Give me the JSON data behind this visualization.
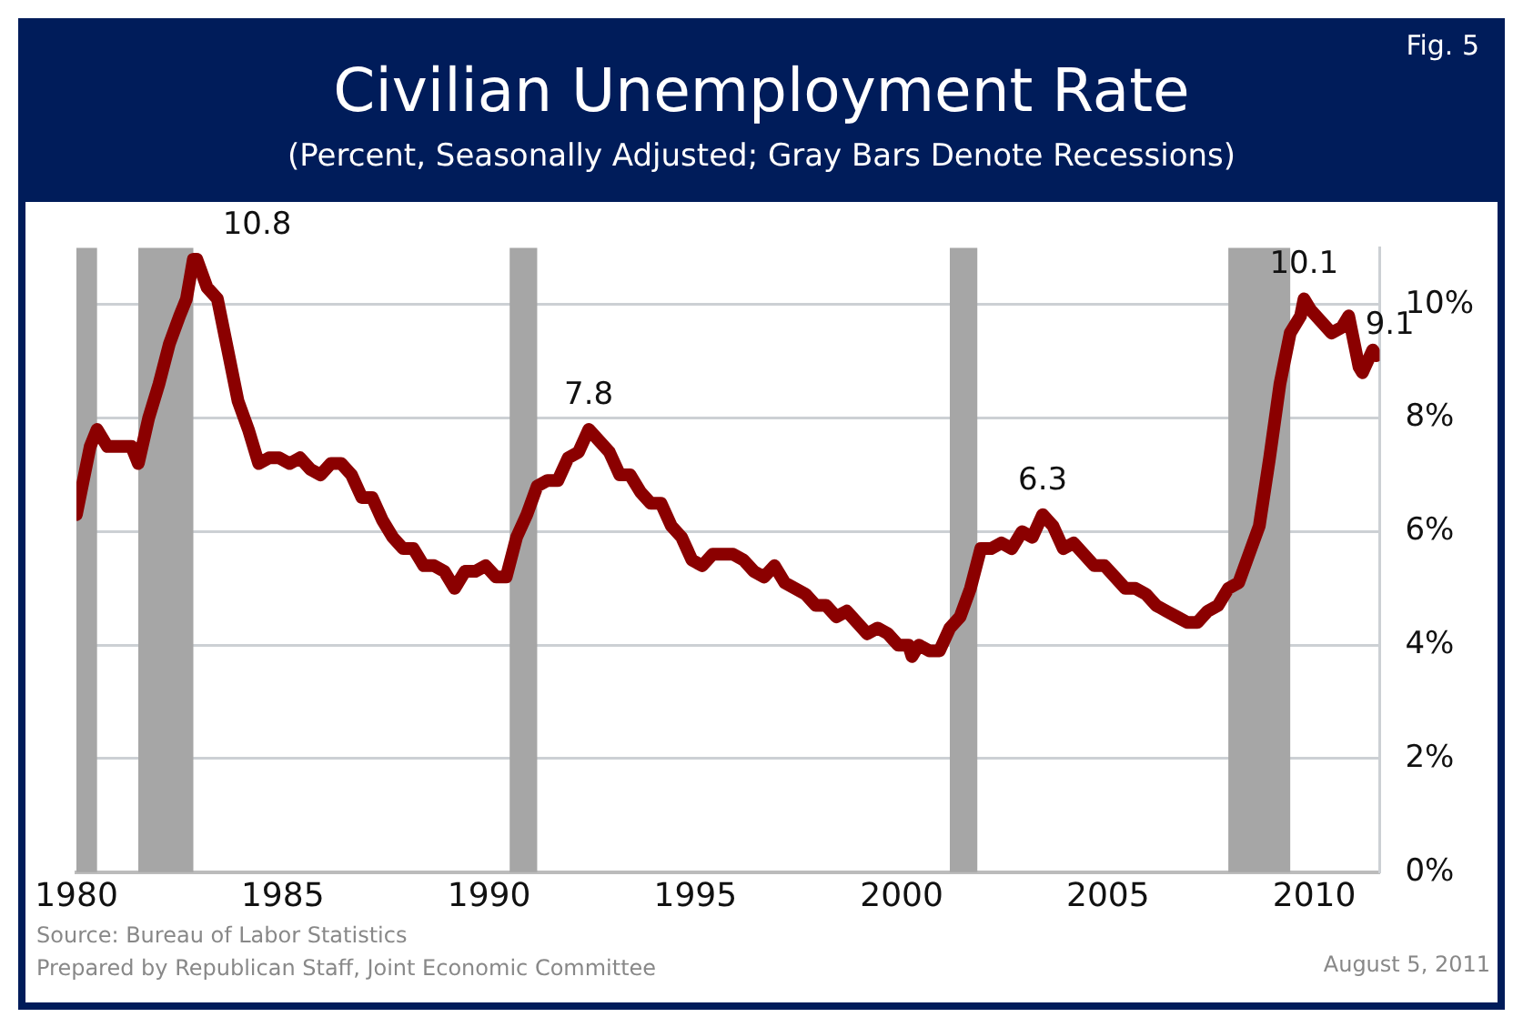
{
  "chart_data": {
    "type": "line",
    "title": "Civilian Unemployment Rate",
    "subtitle": "(Percent, Seasonally Adjusted; Gray Bars Denote Recessions)",
    "x": [
      "1980-01",
      "1980-05",
      "1980-07",
      "1980-10",
      "1981-01",
      "1981-05",
      "1981-07",
      "1981-10",
      "1982-01",
      "1982-04",
      "1982-07",
      "1982-09",
      "1982-11",
      "1982-12",
      "1983-03",
      "1983-06",
      "1983-09",
      "1983-12",
      "1984-03",
      "1984-06",
      "1984-09",
      "1984-12",
      "1985-03",
      "1985-06",
      "1985-09",
      "1985-12",
      "1986-03",
      "1986-06",
      "1986-09",
      "1986-12",
      "1987-03",
      "1987-06",
      "1987-09",
      "1987-12",
      "1988-03",
      "1988-06",
      "1988-09",
      "1988-12",
      "1989-03",
      "1989-06",
      "1989-09",
      "1989-12",
      "1990-03",
      "1990-06",
      "1990-09",
      "1990-12",
      "1991-03",
      "1991-06",
      "1991-09",
      "1991-12",
      "1992-03",
      "1992-06",
      "1992-09",
      "1992-12",
      "1993-03",
      "1993-06",
      "1993-09",
      "1993-12",
      "1994-03",
      "1994-06",
      "1994-09",
      "1994-12",
      "1995-03",
      "1995-06",
      "1995-09",
      "1995-12",
      "1996-03",
      "1996-06",
      "1996-09",
      "1996-12",
      "1997-03",
      "1997-06",
      "1997-09",
      "1997-12",
      "1998-03",
      "1998-06",
      "1998-09",
      "1998-12",
      "1999-03",
      "1999-06",
      "1999-09",
      "1999-12",
      "2000-03",
      "2000-04",
      "2000-06",
      "2000-09",
      "2000-12",
      "2001-03",
      "2001-06",
      "2001-09",
      "2001-12",
      "2002-03",
      "2002-06",
      "2002-09",
      "2002-12",
      "2003-03",
      "2003-06",
      "2003-09",
      "2003-12",
      "2004-03",
      "2004-06",
      "2004-09",
      "2004-12",
      "2005-03",
      "2005-06",
      "2005-09",
      "2005-12",
      "2006-03",
      "2006-06",
      "2006-09",
      "2006-12",
      "2007-03",
      "2007-06",
      "2007-09",
      "2007-12",
      "2008-03",
      "2008-06",
      "2008-09",
      "2008-12",
      "2009-03",
      "2009-06",
      "2009-09",
      "2009-10",
      "2009-12",
      "2010-03",
      "2010-06",
      "2010-09",
      "2010-11",
      "2011-02",
      "2011-03",
      "2011-06",
      "2011-07"
    ],
    "series": [
      {
        "color": "#8b0000",
        "values": [
          6.3,
          7.5,
          7.8,
          7.5,
          7.5,
          7.5,
          7.2,
          8.0,
          8.6,
          9.3,
          9.8,
          10.1,
          10.8,
          10.8,
          10.3,
          10.1,
          9.2,
          8.3,
          7.8,
          7.2,
          7.3,
          7.3,
          7.2,
          7.3,
          7.1,
          7.0,
          7.2,
          7.2,
          7.0,
          6.6,
          6.6,
          6.2,
          5.9,
          5.7,
          5.7,
          5.4,
          5.4,
          5.3,
          5.0,
          5.3,
          5.3,
          5.4,
          5.2,
          5.2,
          5.9,
          6.3,
          6.8,
          6.9,
          6.9,
          7.3,
          7.4,
          7.8,
          7.6,
          7.4,
          7.0,
          7.0,
          6.7,
          6.5,
          6.5,
          6.1,
          5.9,
          5.5,
          5.4,
          5.6,
          5.6,
          5.6,
          5.5,
          5.3,
          5.2,
          5.4,
          5.1,
          5.0,
          4.9,
          4.7,
          4.7,
          4.5,
          4.6,
          4.4,
          4.2,
          4.3,
          4.2,
          4.0,
          4.0,
          3.8,
          4.0,
          3.9,
          3.9,
          4.3,
          4.5,
          5.0,
          5.7,
          5.7,
          5.8,
          5.7,
          6.0,
          5.9,
          6.3,
          6.1,
          5.7,
          5.8,
          5.6,
          5.4,
          5.4,
          5.2,
          5.0,
          5.0,
          4.9,
          4.7,
          4.6,
          4.5,
          4.4,
          4.4,
          4.6,
          4.7,
          5.0,
          5.1,
          5.6,
          6.1,
          7.3,
          8.6,
          9.5,
          9.8,
          10.1,
          9.9,
          9.7,
          9.5,
          9.6,
          9.8,
          8.9,
          8.8,
          9.2,
          9.1
        ]
      }
    ],
    "xlim": [
      "1980-01",
      "2011-08"
    ],
    "xticks": [
      {
        "value": "1980",
        "label": "1980"
      },
      {
        "value": "1985",
        "label": "1985"
      },
      {
        "value": "1990",
        "label": "1990"
      },
      {
        "value": "1995",
        "label": "1995"
      },
      {
        "value": "2000",
        "label": "2000"
      },
      {
        "value": "2005",
        "label": "2005"
      },
      {
        "value": "2010",
        "label": "2010"
      }
    ],
    "ylim": [
      0,
      11
    ],
    "yticks": [
      {
        "value": 0,
        "label": "0%"
      },
      {
        "value": 2,
        "label": "2%"
      },
      {
        "value": 4,
        "label": "4%"
      },
      {
        "value": 6,
        "label": "6%"
      },
      {
        "value": 8,
        "label": "8%"
      },
      {
        "value": 10,
        "label": "10%"
      }
    ],
    "bands": [
      {
        "axis": "x",
        "from": "1980-01",
        "to": "1980-07",
        "color": "#a6a6a6"
      },
      {
        "axis": "x",
        "from": "1981-07",
        "to": "1982-11",
        "color": "#a6a6a6"
      },
      {
        "axis": "x",
        "from": "1990-07",
        "to": "1991-03",
        "color": "#a6a6a6"
      },
      {
        "axis": "x",
        "from": "2001-03",
        "to": "2001-11",
        "color": "#a6a6a6"
      },
      {
        "axis": "x",
        "from": "2007-12",
        "to": "2009-06",
        "color": "#a6a6a6"
      }
    ],
    "annotations": [
      {
        "text": "10.8",
        "x": "1982-11",
        "y": 10.8
      },
      {
        "text": "7.8",
        "x": "1992-06",
        "y": 7.8
      },
      {
        "text": "6.3",
        "x": "2003-06",
        "y": 6.3
      },
      {
        "text": "10.1",
        "x": "2009-10",
        "y": 10.1
      },
      {
        "text": "9.1",
        "x": "2011-07",
        "y": 9.1
      },
      "Fig. 5",
      "Source:  Bureau of Labor Statistics",
      "Prepared by Republican Staff, Joint Economic Committee",
      "August 5, 2011"
    ],
    "grid": "y",
    "legend": false,
    "marker": "none",
    "line_style": "solid"
  }
}
